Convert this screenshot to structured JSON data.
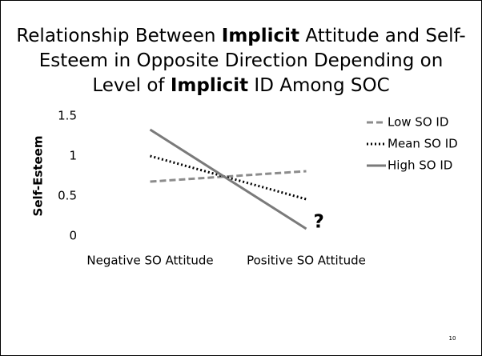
{
  "slide_number": "10",
  "chart_data": {
    "type": "line",
    "title_lines": [
      [
        {
          "text": "Relationship Between ",
          "bold": false
        },
        {
          "text": "Implicit",
          "bold": true
        },
        {
          "text": " Attitude and Self-",
          "bold": false
        }
      ],
      [
        {
          "text": "Esteem in Opposite Direction Depending on",
          "bold": false
        }
      ],
      [
        {
          "text": "Level of ",
          "bold": false
        },
        {
          "text": "Implicit",
          "bold": true
        },
        {
          "text": " ID Among SOC",
          "bold": false
        }
      ]
    ],
    "y_label": "Self-Esteem",
    "categories": [
      "Negative SO Attitude",
      "Positive SO Attitude"
    ],
    "series": [
      {
        "name": "Low SO ID",
        "color": "#8c8c8c",
        "dash": "dashed",
        "values": [
          0.68,
          0.81
        ]
      },
      {
        "name": "Mean SO ID",
        "color": "#000000",
        "dash": "dotted",
        "values": [
          1.0,
          0.46
        ]
      },
      {
        "name": "High SO ID",
        "color": "#7a7a7a",
        "dash": "solid",
        "values": [
          1.33,
          0.09
        ]
      }
    ],
    "ylim": [
      0,
      1.5
    ],
    "yticks": [
      0,
      0.5,
      1,
      1.5
    ],
    "grid": false,
    "legend": "right",
    "annotation": "?"
  }
}
